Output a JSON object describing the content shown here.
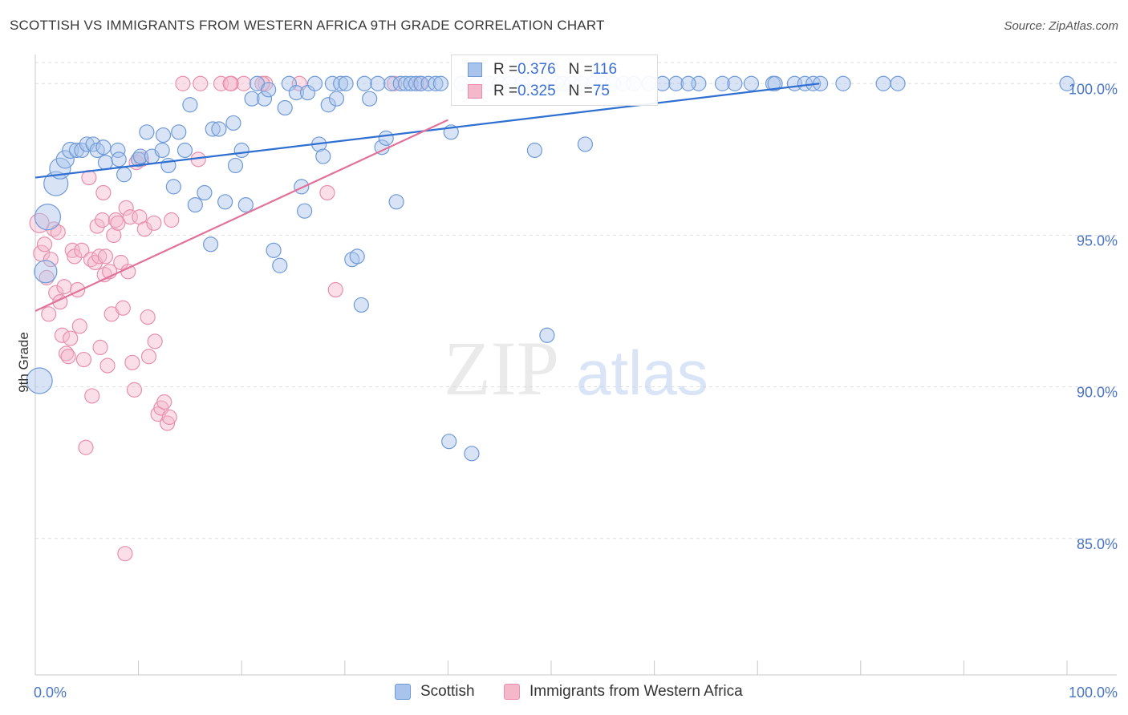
{
  "header": {
    "title": "SCOTTISH VS IMMIGRANTS FROM WESTERN AFRICA 9TH GRADE CORRELATION CHART",
    "source": "Source: ZipAtlas.com"
  },
  "legend": {
    "scottish": {
      "r_label": "R = ",
      "r_value": "0.376",
      "n_label": "N = ",
      "n_value": "116"
    },
    "immigrants": {
      "r_label": "R = ",
      "r_value": "0.325",
      "n_label": "N = ",
      "n_value": "75"
    }
  },
  "colors": {
    "scottish_fill": "#a8c4ec",
    "scottish_stroke": "#6f9ad8",
    "scottish_line": "#2e6fd1",
    "immigrants_fill": "#f5b8cb",
    "immigrants_stroke": "#e88fae",
    "immigrants_line": "#e2729a",
    "tick_text": "#4a74c4"
  },
  "chart_data": {
    "type": "scatter",
    "xlabel": "",
    "ylabel": "9th Grade",
    "xlim": [
      0,
      100
    ],
    "ylim": [
      80.5,
      100.8
    ],
    "x_tick_labels": [
      {
        "value": 0,
        "label": "0.0%"
      },
      {
        "value": 100,
        "label": "100.0%"
      }
    ],
    "y_tick_labels": [
      {
        "value": 100,
        "label": "100.0%"
      },
      {
        "value": 95,
        "label": "95.0%"
      },
      {
        "value": 90,
        "label": "90.0%"
      },
      {
        "value": 85,
        "label": "85.0%"
      }
    ],
    "grid": true,
    "legend_position": "top-center",
    "watermark": {
      "part1": "ZIP",
      "part2": "atlas"
    },
    "series": [
      {
        "name": "Scottish",
        "trendline": {
          "x": [
            0,
            76
          ],
          "y": [
            96.9,
            100.0
          ]
        },
        "points": [
          [
            0.4,
            90.2,
            16
          ],
          [
            1.2,
            95.6,
            16
          ],
          [
            1.0,
            93.8,
            14
          ],
          [
            2.0,
            96.7,
            15
          ],
          [
            2.4,
            97.2,
            13
          ],
          [
            2.9,
            97.5,
            11
          ],
          [
            3.4,
            97.8,
            10
          ],
          [
            4.0,
            97.8,
            9
          ],
          [
            4.5,
            97.8,
            9
          ],
          [
            5.0,
            98.0,
            9
          ],
          [
            5.6,
            98.0,
            9
          ],
          [
            6.0,
            97.8,
            9
          ],
          [
            6.6,
            97.9,
            9
          ],
          [
            6.8,
            97.4,
            9
          ],
          [
            8.0,
            97.8,
            9
          ],
          [
            8.1,
            97.5,
            9
          ],
          [
            8.6,
            97.0,
            9
          ],
          [
            10.0,
            97.5,
            9
          ],
          [
            10.2,
            97.6,
            9
          ],
          [
            10.8,
            98.4,
            9
          ],
          [
            11.3,
            97.6,
            9
          ],
          [
            12.3,
            97.8,
            9
          ],
          [
            12.4,
            98.3,
            9
          ],
          [
            12.9,
            97.3,
            9
          ],
          [
            13.4,
            96.6,
            9
          ],
          [
            13.9,
            98.4,
            9
          ],
          [
            14.5,
            97.8,
            9
          ],
          [
            15.0,
            99.3,
            9
          ],
          [
            15.5,
            96.0,
            9
          ],
          [
            16.4,
            96.4,
            9
          ],
          [
            17.0,
            94.7,
            9
          ],
          [
            17.2,
            98.5,
            9
          ],
          [
            17.8,
            98.5,
            9
          ],
          [
            18.4,
            96.1,
            9
          ],
          [
            19.2,
            98.7,
            9
          ],
          [
            19.4,
            97.3,
            9
          ],
          [
            20.0,
            97.8,
            9
          ],
          [
            20.4,
            96.0,
            9
          ],
          [
            21.0,
            99.5,
            9
          ],
          [
            21.5,
            100.0,
            9
          ],
          [
            22.2,
            99.5,
            9
          ],
          [
            22.6,
            99.8,
            9
          ],
          [
            23.1,
            94.5,
            9
          ],
          [
            23.7,
            94.0,
            9
          ],
          [
            24.2,
            99.2,
            9
          ],
          [
            24.6,
            100.0,
            9
          ],
          [
            25.3,
            99.7,
            9
          ],
          [
            25.8,
            96.6,
            9
          ],
          [
            26.1,
            95.8,
            9
          ],
          [
            26.4,
            99.7,
            9
          ],
          [
            27.1,
            100.0,
            9
          ],
          [
            27.5,
            98.0,
            9
          ],
          [
            27.9,
            97.6,
            9
          ],
          [
            28.4,
            99.3,
            9
          ],
          [
            28.8,
            100.0,
            9
          ],
          [
            29.2,
            99.5,
            9
          ],
          [
            29.6,
            100.0,
            9
          ],
          [
            30.1,
            100.0,
            9
          ],
          [
            30.7,
            94.2,
            9
          ],
          [
            31.2,
            94.3,
            9
          ],
          [
            31.6,
            92.7,
            9
          ],
          [
            31.9,
            100.0,
            9
          ],
          [
            32.4,
            99.5,
            9
          ],
          [
            33.2,
            100.0,
            9
          ],
          [
            33.6,
            97.9,
            9
          ],
          [
            34.0,
            98.2,
            9
          ],
          [
            34.5,
            100.0,
            9
          ],
          [
            35.0,
            96.1,
            9
          ],
          [
            35.4,
            100.0,
            9
          ],
          [
            35.9,
            100.0,
            9
          ],
          [
            36.4,
            100.0,
            9
          ],
          [
            36.9,
            100.0,
            9
          ],
          [
            37.4,
            100.0,
            9
          ],
          [
            38.1,
            100.0,
            9
          ],
          [
            38.8,
            100.0,
            9
          ],
          [
            39.3,
            100.0,
            9
          ],
          [
            40.1,
            88.2,
            9
          ],
          [
            40.3,
            98.4,
            9
          ],
          [
            42.3,
            87.8,
            9
          ],
          [
            41.3,
            100.0,
            9
          ],
          [
            42.8,
            100.0,
            9
          ],
          [
            44.0,
            100.0,
            9
          ],
          [
            45.0,
            100.0,
            9
          ],
          [
            46.0,
            100.0,
            9
          ],
          [
            47.2,
            100.0,
            9
          ],
          [
            48.4,
            97.8,
            9
          ],
          [
            49.0,
            100.0,
            9
          ],
          [
            49.6,
            91.7,
            9
          ],
          [
            50.5,
            100.0,
            9
          ],
          [
            51.1,
            100.0,
            9
          ],
          [
            52.0,
            100.0,
            9
          ],
          [
            53.0,
            100.0,
            9
          ],
          [
            53.3,
            98.0,
            9
          ],
          [
            54.1,
            100.0,
            9
          ],
          [
            55.0,
            100.0,
            9
          ],
          [
            56.0,
            100.0,
            9
          ],
          [
            57.0,
            100.0,
            9
          ],
          [
            58.0,
            100.0,
            9
          ],
          [
            59.5,
            100.0,
            9
          ],
          [
            62.1,
            100.0,
            9
          ],
          [
            64.3,
            100.0,
            9
          ],
          [
            66.6,
            100.0,
            9
          ],
          [
            69.4,
            100.0,
            9
          ],
          [
            71.5,
            100.0,
            9
          ],
          [
            71.7,
            100.0,
            9
          ],
          [
            73.6,
            100.0,
            9
          ],
          [
            74.6,
            100.0,
            9
          ],
          [
            75.4,
            100.0,
            9
          ],
          [
            76.1,
            100.0,
            9
          ],
          [
            78.3,
            100.0,
            9
          ],
          [
            82.2,
            100.0,
            9
          ],
          [
            83.6,
            100.0,
            9
          ],
          [
            100.0,
            100.0,
            9
          ],
          [
            60.8,
            100.0,
            9
          ],
          [
            67.8,
            100.0,
            9
          ],
          [
            63.3,
            100.0,
            9
          ]
        ]
      },
      {
        "name": "Immigrants from Western Africa",
        "trendline": {
          "x": [
            0,
            40
          ],
          "y": [
            92.5,
            98.8
          ]
        },
        "points": [
          [
            0.4,
            95.4,
            12
          ],
          [
            0.6,
            94.4,
            10
          ],
          [
            0.9,
            94.7,
            9
          ],
          [
            1.1,
            93.6,
            9
          ],
          [
            1.3,
            92.4,
            9
          ],
          [
            1.5,
            94.2,
            9
          ],
          [
            1.8,
            95.2,
            9
          ],
          [
            2.0,
            93.1,
            9
          ],
          [
            2.2,
            95.1,
            9
          ],
          [
            2.4,
            92.8,
            9
          ],
          [
            2.6,
            91.7,
            9
          ],
          [
            2.8,
            93.3,
            9
          ],
          [
            3.0,
            91.1,
            9
          ],
          [
            3.2,
            91.0,
            9
          ],
          [
            3.4,
            91.6,
            9
          ],
          [
            3.6,
            94.5,
            9
          ],
          [
            3.8,
            94.3,
            9
          ],
          [
            4.1,
            93.2,
            9
          ],
          [
            4.3,
            92.0,
            9
          ],
          [
            4.5,
            94.5,
            9
          ],
          [
            4.7,
            90.9,
            9
          ],
          [
            4.9,
            88.0,
            9
          ],
          [
            5.2,
            96.9,
            9
          ],
          [
            5.4,
            94.2,
            9
          ],
          [
            5.5,
            89.7,
            9
          ],
          [
            5.8,
            94.1,
            9
          ],
          [
            6.0,
            95.3,
            9
          ],
          [
            6.2,
            94.3,
            9
          ],
          [
            6.3,
            91.3,
            9
          ],
          [
            6.5,
            95.5,
            9
          ],
          [
            6.6,
            96.4,
            9
          ],
          [
            6.7,
            93.7,
            9
          ],
          [
            6.8,
            94.3,
            9
          ],
          [
            7.0,
            90.7,
            9
          ],
          [
            7.2,
            93.8,
            9
          ],
          [
            7.4,
            92.4,
            9
          ],
          [
            7.6,
            95.0,
            9
          ],
          [
            7.8,
            95.5,
            9
          ],
          [
            8.0,
            95.4,
            9
          ],
          [
            8.3,
            94.1,
            9
          ],
          [
            8.5,
            92.6,
            9
          ],
          [
            8.8,
            95.9,
            9
          ],
          [
            9.0,
            93.8,
            9
          ],
          [
            9.2,
            95.6,
            9
          ],
          [
            9.4,
            90.8,
            9
          ],
          [
            9.6,
            89.9,
            9
          ],
          [
            9.8,
            97.4,
            9
          ],
          [
            10.1,
            95.6,
            9
          ],
          [
            10.3,
            97.5,
            9
          ],
          [
            10.6,
            95.2,
            9
          ],
          [
            10.9,
            92.3,
            9
          ],
          [
            11.0,
            91.0,
            9
          ],
          [
            11.5,
            95.4,
            9
          ],
          [
            11.6,
            91.5,
            9
          ],
          [
            11.9,
            89.1,
            9
          ],
          [
            12.2,
            89.3,
            9
          ],
          [
            12.5,
            89.5,
            9
          ],
          [
            12.8,
            88.8,
            9
          ],
          [
            13.0,
            89.0,
            9
          ],
          [
            13.2,
            95.5,
            9
          ],
          [
            14.3,
            100.0,
            9
          ],
          [
            16.0,
            100.0,
            9
          ],
          [
            18.0,
            100.0,
            9
          ],
          [
            19.0,
            100.0,
            9
          ],
          [
            20.2,
            100.0,
            9
          ],
          [
            22.3,
            100.0,
            9
          ],
          [
            15.8,
            97.5,
            9
          ],
          [
            18.9,
            100.0,
            9
          ],
          [
            22.0,
            100.0,
            9
          ],
          [
            25.6,
            100.0,
            9
          ],
          [
            28.3,
            96.4,
            9
          ],
          [
            29.1,
            93.2,
            9
          ],
          [
            34.8,
            100.0,
            9
          ],
          [
            37.3,
            100.0,
            9
          ],
          [
            8.7,
            84.5,
            9
          ]
        ]
      }
    ]
  }
}
